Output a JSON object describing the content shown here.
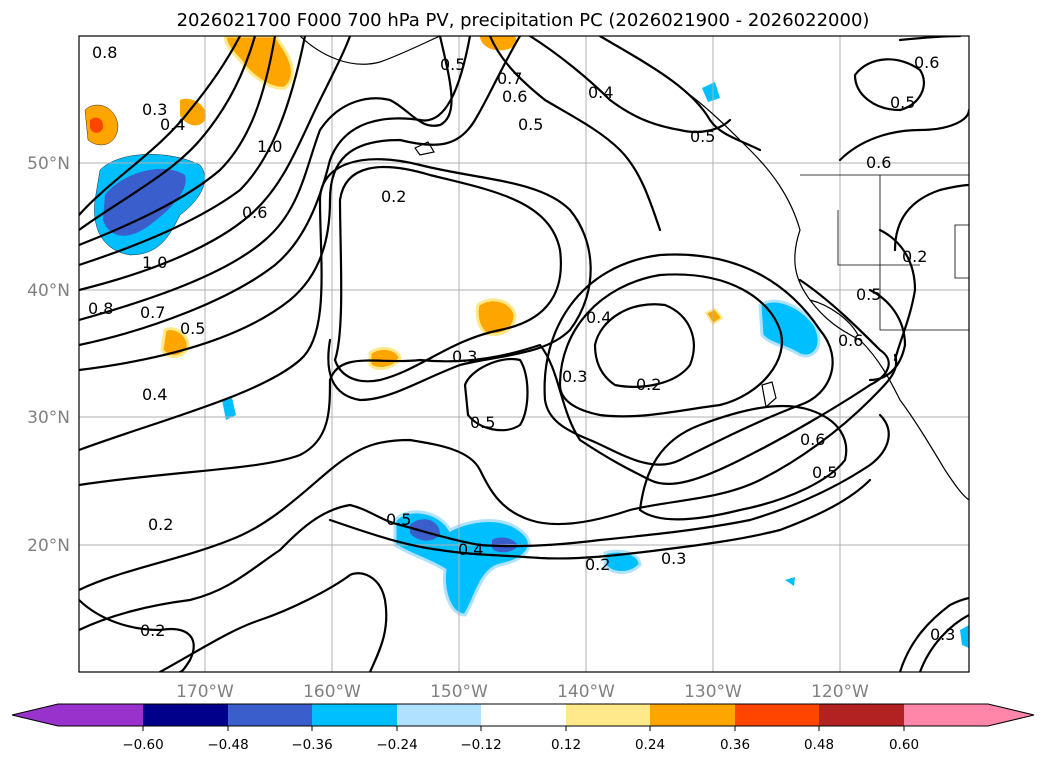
{
  "title": "2026021700 F000 700 hPa PV, precipitation PC (2026021900 - 2026022000)",
  "latitude_labels": [
    "50°N",
    "40°N",
    "30°N",
    "20°N"
  ],
  "longitude_labels": [
    "170°W",
    "160°W",
    "150°W",
    "140°W",
    "130°W",
    "120°W"
  ],
  "colorbar": {
    "ticks": [
      "−0.60",
      "−0.48",
      "−0.36",
      "−0.24",
      "−0.12",
      "0.12",
      "0.24",
      "0.36",
      "0.48",
      "0.60"
    ],
    "colors": [
      "#9932cc",
      "#00008b",
      "#3a5fcd",
      "#00bfff",
      "#b0e2ff",
      "#ffffff",
      "#ffe98a",
      "#ffa500",
      "#ff4500",
      "#b22222",
      "#ff86a8"
    ]
  },
  "contour_labels": {
    "c1": "0.8",
    "c2": "0.3",
    "c3": "0.4",
    "c4": "1.0",
    "c5": "1.0",
    "c6": "0.6",
    "c7": "0.8",
    "c8": "0.7",
    "c9": "0.5",
    "c10": "0.4",
    "c11": "0.2",
    "c12": "0.3",
    "c13": "0.5",
    "c14": "0.4",
    "c15": "0.3",
    "c16": "0.2",
    "c17": "0.5",
    "c18": "0.4",
    "c19": "0.2",
    "c20": "0.3",
    "c21": "0.2",
    "c22": "0.2",
    "c23": "0.3",
    "c24": "0.7",
    "c25": "0.6",
    "c26": "0.5",
    "c27": "0.4",
    "c28": "0.5",
    "c29": "0.5",
    "c30": "0.6",
    "c31": "0.6",
    "c32": "0.5",
    "c33": "0.2",
    "c34": "0.5",
    "c35": "0.6",
    "c36": "0.6",
    "c37": "0.5"
  }
}
